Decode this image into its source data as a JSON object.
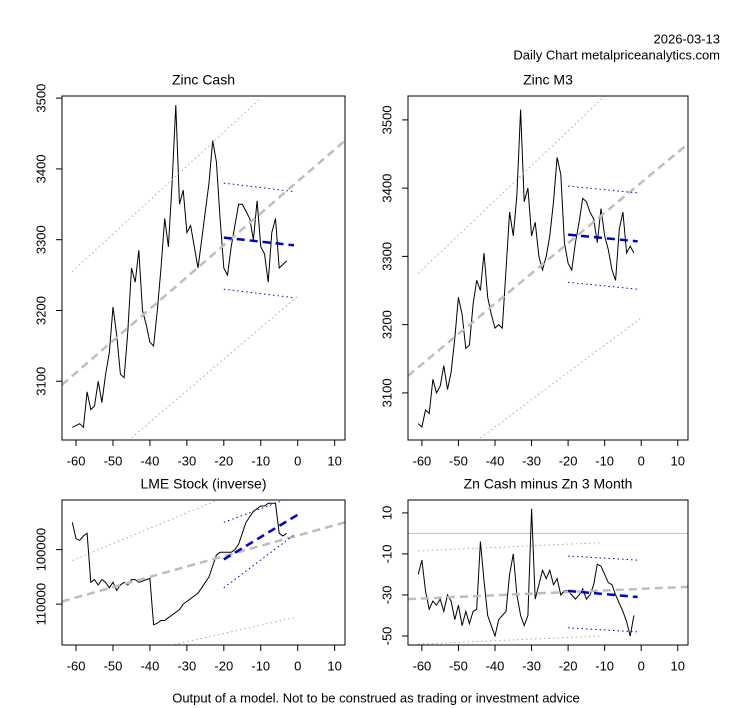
{
  "date": "2026-03-13",
  "subtitle": "Daily Chart metalpriceanalytics.com",
  "footer": "Output of a model. Not to be construed as trading or investment advice",
  "chart_data": [
    {
      "type": "line",
      "title": "Zinc Cash",
      "xlim": [
        -63.8,
        12.8
      ],
      "xticks": [
        -60,
        -50,
        -40,
        -30,
        -20,
        -10,
        0,
        10
      ],
      "ylim": [
        3017,
        3503
      ],
      "yticks": [
        3100,
        3200,
        3300,
        3400,
        3500
      ],
      "series": [
        {
          "color": "#000000",
          "dash": "solid",
          "width": 1,
          "x": [
            -61,
            -59,
            -58,
            -57,
            -56,
            -55,
            -54,
            -53,
            -52,
            -51,
            -50,
            -49,
            -48,
            -47,
            -46,
            -45,
            -44,
            -43,
            -42,
            -41,
            -40,
            -39,
            -38,
            -37,
            -36,
            -35,
            -34,
            -33,
            -32,
            -31,
            -30,
            -29,
            -28,
            -27,
            -26,
            -25,
            -24,
            -23,
            -22,
            -21,
            -20,
            -19,
            -18,
            -17,
            -16,
            -15,
            -14,
            -13,
            -12,
            -11,
            -10,
            -9,
            -8,
            -7,
            -6,
            -5,
            -4,
            -3
          ],
          "values": [
            3035,
            3040,
            3035,
            3085,
            3060,
            3065,
            3100,
            3070,
            3110,
            3140,
            3205,
            3165,
            3110,
            3105,
            3170,
            3260,
            3240,
            3285,
            3200,
            3180,
            3155,
            3150,
            3200,
            3260,
            3330,
            3290,
            3380,
            3490,
            3350,
            3370,
            3310,
            3320,
            3290,
            3260,
            3300,
            3340,
            3380,
            3440,
            3410,
            3330,
            3260,
            3250,
            3290,
            3320,
            3350,
            3350,
            3340,
            3330,
            3300,
            3355,
            3290,
            3280,
            3240,
            3310,
            3330,
            3260,
            3265,
            3270
          ]
        },
        {
          "color": "#bebebe",
          "dash": "dashed",
          "width": 2.5,
          "x": [
            -63.8,
            12.8
          ],
          "values": [
            3095,
            3440
          ]
        },
        {
          "color": "#aaaaaa",
          "dash": "dotted",
          "width": 1,
          "x": [
            -61,
            -10
          ],
          "values": [
            3255,
            3500
          ]
        },
        {
          "color": "#aaaaaa",
          "dash": "dotted",
          "width": 1,
          "x": [
            -45,
            0
          ],
          "values": [
            3020,
            3220
          ]
        },
        {
          "color": "#0000cd",
          "dash": "dashed",
          "width": 2.5,
          "x": [
            -20,
            -1
          ],
          "values": [
            3303,
            3292
          ]
        },
        {
          "color": "#0000cd",
          "dash": "dotted",
          "width": 1,
          "x": [
            -20,
            -1
          ],
          "values": [
            3380,
            3368
          ]
        },
        {
          "color": "#0000cd",
          "dash": "dotted",
          "width": 1,
          "x": [
            -20,
            -1
          ],
          "values": [
            3230,
            3218
          ]
        }
      ]
    },
    {
      "type": "line",
      "title": "Zinc M3",
      "xlim": [
        -63.8,
        12.8
      ],
      "xticks": [
        -60,
        -50,
        -40,
        -30,
        -20,
        -10,
        0,
        10
      ],
      "ylim": [
        3031,
        3535
      ],
      "yticks": [
        3100,
        3200,
        3300,
        3400,
        3500
      ],
      "series": [
        {
          "color": "#000000",
          "dash": "solid",
          "width": 1,
          "x": [
            -61,
            -60,
            -59,
            -58,
            -57,
            -56,
            -55,
            -54,
            -53,
            -52,
            -51,
            -50,
            -49,
            -48,
            -47,
            -46,
            -45,
            -44,
            -43,
            -42,
            -41,
            -40,
            -39,
            -38,
            -37,
            -36,
            -35,
            -34,
            -33,
            -32,
            -31,
            -30,
            -29,
            -28,
            -27,
            -26,
            -25,
            -24,
            -23,
            -22,
            -21,
            -20,
            -19,
            -18,
            -17,
            -16,
            -15,
            -14,
            -13,
            -12,
            -11,
            -10,
            -9,
            -8,
            -7,
            -6,
            -5,
            -4,
            -3,
            -2
          ],
          "values": [
            3055,
            3050,
            3075,
            3070,
            3120,
            3100,
            3110,
            3140,
            3105,
            3130,
            3180,
            3240,
            3215,
            3165,
            3170,
            3230,
            3265,
            3250,
            3305,
            3240,
            3215,
            3195,
            3200,
            3195,
            3280,
            3365,
            3330,
            3390,
            3515,
            3380,
            3400,
            3330,
            3350,
            3300,
            3280,
            3300,
            3330,
            3380,
            3445,
            3420,
            3320,
            3290,
            3280,
            3320,
            3350,
            3385,
            3380,
            3365,
            3355,
            3320,
            3370,
            3330,
            3310,
            3280,
            3265,
            3340,
            3365,
            3305,
            3315,
            3305
          ]
        },
        {
          "color": "#bebebe",
          "dash": "dashed",
          "width": 2.5,
          "x": [
            -63.8,
            12.8
          ],
          "values": [
            3125,
            3465
          ]
        },
        {
          "color": "#aaaaaa",
          "dash": "dotted",
          "width": 1,
          "x": [
            -61,
            -10
          ],
          "values": [
            3275,
            3535
          ]
        },
        {
          "color": "#aaaaaa",
          "dash": "dotted",
          "width": 1,
          "x": [
            -45,
            0
          ],
          "values": [
            3030,
            3210
          ]
        },
        {
          "color": "#0000cd",
          "dash": "dashed",
          "width": 2.5,
          "x": [
            -20,
            -1
          ],
          "values": [
            3332,
            3322
          ]
        },
        {
          "color": "#0000cd",
          "dash": "dotted",
          "width": 1,
          "x": [
            -20,
            -1
          ],
          "values": [
            3403,
            3393
          ]
        },
        {
          "color": "#0000cd",
          "dash": "dotted",
          "width": 1,
          "x": [
            -20,
            -1
          ],
          "values": [
            3262,
            3252
          ]
        }
      ]
    },
    {
      "type": "line",
      "title": "LME Stock (inverse)",
      "xlim": [
        -63.8,
        12.8
      ],
      "xticks": [
        -60,
        -50,
        -40,
        -30,
        -20,
        -10,
        0,
        10
      ],
      "ylim": [
        117500,
        90900
      ],
      "yticks": [
        100000,
        110000
      ],
      "series": [
        {
          "color": "#000000",
          "dash": "solid",
          "width": 1,
          "x": [
            -61,
            -60,
            -59,
            -58,
            -57,
            -56,
            -55,
            -54,
            -53,
            -52,
            -51,
            -50,
            -49,
            -48,
            -47,
            -46,
            -45,
            -44,
            -43,
            -42,
            -41,
            -40,
            -39,
            -38,
            -37,
            -36,
            -35,
            -34,
            -33,
            -32,
            -31,
            -30,
            -29,
            -28,
            -27,
            -26,
            -25,
            -24,
            -23,
            -22,
            -21,
            -20,
            -19,
            -18,
            -17,
            -16,
            -15,
            -14,
            -13,
            -12,
            -11,
            -10,
            -9,
            -8,
            -7,
            -6,
            -5,
            -4,
            -3
          ],
          "values": [
            95000,
            98000,
            98300,
            97500,
            97000,
            106000,
            105500,
            106500,
            105500,
            106000,
            107000,
            106000,
            107500,
            106500,
            106000,
            106500,
            105500,
            105500,
            106000,
            105800,
            105500,
            105300,
            113800,
            113500,
            113000,
            113000,
            112500,
            112000,
            111500,
            111000,
            110000,
            109500,
            109000,
            108500,
            108000,
            107000,
            106000,
            105000,
            103000,
            101000,
            100500,
            100500,
            100500,
            100500,
            100000,
            99000,
            97000,
            95000,
            94000,
            93000,
            92500,
            92000,
            92000,
            91500,
            91500,
            91500,
            97000,
            97500,
            97000
          ]
        },
        {
          "color": "#bebebe",
          "dash": "dashed",
          "width": 2.5,
          "x": [
            -63.8,
            12.8
          ],
          "values": [
            109500,
            95000
          ]
        },
        {
          "color": "#aaaaaa",
          "dash": "dotted",
          "width": 1,
          "x": [
            -61,
            -22
          ],
          "values": [
            102000,
            91000
          ]
        },
        {
          "color": "#aaaaaa",
          "dash": "dotted",
          "width": 1,
          "x": [
            -37,
            -1
          ],
          "values": [
            118000,
            112500
          ]
        },
        {
          "color": "#0000cd",
          "dash": "dashed",
          "width": 2.5,
          "x": [
            -20,
            0
          ],
          "values": [
            101800,
            93600
          ]
        },
        {
          "color": "#0000cd",
          "dash": "dotted",
          "width": 1,
          "x": [
            -20,
            -4
          ],
          "values": [
            95000,
            91000
          ]
        },
        {
          "color": "#0000cd",
          "dash": "dotted",
          "width": 1,
          "x": [
            -20,
            -1
          ],
          "values": [
            107000,
            97300
          ]
        }
      ]
    },
    {
      "type": "line",
      "title": "Zn Cash minus Zn 3 Month",
      "xlim": [
        -63.8,
        12.8
      ],
      "xticks": [
        -60,
        -50,
        -40,
        -30,
        -20,
        -10,
        0,
        10
      ],
      "ylim": [
        -54.4,
        16.3
      ],
      "yticks": [
        10,
        -10,
        -30,
        -50
      ],
      "hline": 0,
      "series": [
        {
          "color": "#000000",
          "dash": "solid",
          "width": 1,
          "x": [
            -61,
            -60,
            -59,
            -58,
            -57,
            -56,
            -55,
            -54,
            -53,
            -52,
            -51,
            -50,
            -49,
            -48,
            -47,
            -46,
            -45,
            -44,
            -43,
            -42,
            -41,
            -40,
            -39,
            -38,
            -37,
            -36,
            -35,
            -34,
            -33,
            -32,
            -31,
            -30,
            -29,
            -28,
            -27,
            -26,
            -25,
            -24,
            -23,
            -22,
            -21,
            -20,
            -19,
            -18,
            -17,
            -16,
            -15,
            -14,
            -13,
            -12,
            -11,
            -10,
            -9,
            -8,
            -7,
            -6,
            -5,
            -4,
            -3,
            -2
          ],
          "values": [
            -20,
            -13,
            -28,
            -37,
            -33,
            -35,
            -32,
            -38,
            -30,
            -33,
            -42,
            -35,
            -45,
            -38,
            -44,
            -38,
            -37,
            -4,
            -23,
            -40,
            -45,
            -50,
            -42,
            -40,
            -38,
            -20,
            -10,
            -30,
            -40,
            -45,
            -40,
            12,
            -32,
            -25,
            -18,
            -22,
            -18,
            -25,
            -22,
            -30,
            -28,
            -28,
            -30,
            -32,
            -30,
            -27,
            -32,
            -30,
            -25,
            -15,
            -16,
            -20,
            -24,
            -25,
            -30,
            -34,
            -38,
            -43,
            -50,
            -40
          ]
        },
        {
          "color": "#bebebe",
          "dash": "dashed",
          "width": 2.5,
          "x": [
            -63.8,
            12.8
          ],
          "values": [
            -32,
            -26
          ]
        },
        {
          "color": "#aaaaaa",
          "dash": "dotted",
          "width": 1,
          "x": [
            -61,
            -11
          ],
          "values": [
            -8.5,
            -4.5
          ]
        },
        {
          "color": "#aaaaaa",
          "dash": "dotted",
          "width": 1,
          "x": [
            -61,
            -11
          ],
          "values": [
            -54,
            -50
          ]
        },
        {
          "color": "#0000cd",
          "dash": "dashed",
          "width": 2.5,
          "x": [
            -20,
            -1
          ],
          "values": [
            -28,
            -31
          ]
        },
        {
          "color": "#0000cd",
          "dash": "dotted",
          "width": 1,
          "x": [
            -20,
            -1
          ],
          "values": [
            -11,
            -13
          ]
        },
        {
          "color": "#0000cd",
          "dash": "dotted",
          "width": 1,
          "x": [
            -20,
            -1
          ],
          "values": [
            -46,
            -48
          ]
        }
      ]
    }
  ]
}
